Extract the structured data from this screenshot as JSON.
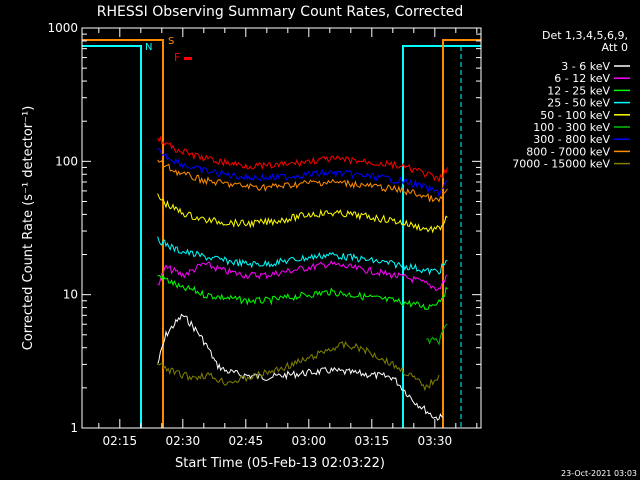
{
  "chart_data": {
    "type": "line",
    "title": "RHESSI Observing Summary Count Rates, Corrected",
    "xlabel": "Start Time (05-Feb-13 02:03:22)",
    "ylabel": "Corrected Count Rate (s⁻¹ detector⁻¹)",
    "xlim": [
      "02:06",
      "03:41"
    ],
    "ylim": [
      1,
      1000
    ],
    "yscale": "log",
    "x_ticks": [
      "02:15",
      "02:30",
      "02:45",
      "03:00",
      "03:15",
      "03:30"
    ],
    "y_ticks": [
      "1",
      "10",
      "100",
      "1000"
    ],
    "legend": {
      "header": [
        "Det 1,3,4,5,6,9,",
        "Att 0"
      ],
      "placement": "right"
    },
    "flags": [
      {
        "label": "S",
        "color": "#ff8c00"
      },
      {
        "label": "N",
        "color": "#00ffff"
      },
      {
        "label": "F",
        "color": "#ff0000"
      }
    ],
    "series": [
      {
        "name": "3 - 6 keV",
        "color": "#ffffff",
        "x": [
          "02:24",
          "02:26",
          "02:28",
          "02:30",
          "02:32",
          "02:34",
          "02:36",
          "02:38",
          "02:40",
          "02:44",
          "02:50",
          "02:55",
          "03:00",
          "03:05",
          "03:10",
          "03:15",
          "03:20",
          "03:25",
          "03:30",
          "03:32"
        ],
        "y": [
          3,
          5,
          6,
          7,
          6,
          5,
          4,
          3,
          2.7,
          2.5,
          2.4,
          2.5,
          2.6,
          2.7,
          2.6,
          2.5,
          2.4,
          1.6,
          1.2,
          1.2
        ]
      },
      {
        "name": "6 - 12 keV",
        "color": "#ff00ff",
        "x": [
          "02:24",
          "02:26",
          "02:28",
          "02:30",
          "02:32",
          "02:35",
          "02:40",
          "02:45",
          "02:50",
          "02:55",
          "03:00",
          "03:05",
          "03:10",
          "03:15",
          "03:20",
          "03:25",
          "03:28",
          "03:31",
          "03:33"
        ],
        "y": [
          12,
          16,
          15,
          14,
          15,
          17,
          15,
          14,
          14,
          15,
          16,
          17,
          16,
          15,
          14,
          13,
          12,
          11,
          14
        ]
      },
      {
        "name": "12 - 25 keV",
        "color": "#00ff00",
        "x": [
          "02:24",
          "02:26",
          "02:28",
          "02:30",
          "02:32",
          "02:35",
          "02:40",
          "02:45",
          "02:50",
          "02:55",
          "03:00",
          "03:05",
          "03:10",
          "03:15",
          "03:20",
          "03:25",
          "03:28",
          "03:31",
          "03:33"
        ],
        "y": [
          14,
          13,
          12,
          11,
          11,
          10,
          9.5,
          9,
          9,
          9.5,
          10,
          10.5,
          10,
          9.5,
          9,
          8.5,
          8,
          9,
          11
        ]
      },
      {
        "name": "25 - 50 keV",
        "color": "#00ffff",
        "x": [
          "02:24",
          "02:26",
          "02:28",
          "02:30",
          "02:33",
          "02:36",
          "02:40",
          "02:45",
          "02:50",
          "02:55",
          "03:00",
          "03:05",
          "03:10",
          "03:15",
          "03:20",
          "03:25",
          "03:28",
          "03:31",
          "03:33"
        ],
        "y": [
          26,
          24,
          22,
          21,
          20,
          19,
          18,
          17,
          17,
          18,
          19,
          20,
          19,
          18,
          17,
          16,
          15,
          15,
          18
        ]
      },
      {
        "name": "50 - 100 keV",
        "color": "#ffff00",
        "x": [
          "02:24",
          "02:26",
          "02:28",
          "02:30",
          "02:33",
          "02:36",
          "02:40",
          "02:45",
          "02:50",
          "02:55",
          "03:00",
          "03:05",
          "03:10",
          "03:15",
          "03:20",
          "03:25",
          "03:28",
          "03:31",
          "03:33"
        ],
        "y": [
          55,
          48,
          44,
          41,
          38,
          36,
          35,
          34,
          35,
          37,
          40,
          41,
          40,
          38,
          36,
          33,
          31,
          31,
          38
        ]
      },
      {
        "name": "100 - 300 keV",
        "color": "#00c000",
        "x": [
          "03:28",
          "03:31",
          "03:33"
        ],
        "y": [
          4.5,
          4.5,
          6
        ]
      },
      {
        "name": "300 - 800 keV",
        "color": "#0000ff",
        "x": [
          "02:24",
          "02:26",
          "02:28",
          "02:30",
          "02:33",
          "02:36",
          "02:40",
          "02:45",
          "02:50",
          "02:55",
          "03:00",
          "03:05",
          "03:10",
          "03:15",
          "03:20",
          "03:25",
          "03:28",
          "03:31",
          "03:33"
        ],
        "y": [
          120,
          110,
          102,
          95,
          88,
          84,
          80,
          76,
          75,
          77,
          80,
          82,
          80,
          77,
          73,
          68,
          63,
          58,
          72
        ]
      },
      {
        "name": "800 - 7000 keV",
        "color": "#ff8c00",
        "x": [
          "02:24",
          "02:26",
          "02:28",
          "02:30",
          "02:33",
          "02:36",
          "02:40",
          "02:45",
          "02:50",
          "02:55",
          "03:00",
          "03:05",
          "03:10",
          "03:15",
          "03:20",
          "03:25",
          "03:28",
          "03:31",
          "03:33"
        ],
        "y": [
          100,
          92,
          85,
          80,
          75,
          71,
          68,
          65,
          64,
          66,
          69,
          70,
          68,
          65,
          62,
          58,
          54,
          50,
          62
        ]
      },
      {
        "name": "7000 - 15000 keV",
        "color": "#808000",
        "x": [
          "02:24",
          "02:28",
          "02:32",
          "02:36",
          "02:40",
          "02:44",
          "02:48",
          "02:52",
          "02:56",
          "03:00",
          "03:04",
          "03:08",
          "03:12",
          "03:16",
          "03:20",
          "03:24",
          "03:28",
          "03:31"
        ],
        "y": [
          3,
          2.6,
          2.4,
          2.5,
          2.2,
          2.3,
          2.5,
          2.7,
          3,
          3.3,
          3.8,
          4.2,
          4,
          3.5,
          3,
          2.5,
          2,
          2.5
        ]
      }
    ],
    "extra_series": [
      {
        "color": "#ff0000",
        "x": [
          "02:24",
          "02:26",
          "02:28",
          "02:30",
          "02:33",
          "02:36",
          "02:40",
          "02:45",
          "02:50",
          "02:55",
          "03:00",
          "03:05",
          "03:10",
          "03:15",
          "03:20",
          "03:25",
          "03:28",
          "03:31",
          "03:33"
        ],
        "y": [
          150,
          135,
          125,
          118,
          110,
          104,
          98,
          93,
          92,
          95,
          100,
          104,
          102,
          98,
          94,
          87,
          80,
          72,
          90
        ]
      }
    ]
  },
  "timestamp": "23-Oct-2021 03:03"
}
